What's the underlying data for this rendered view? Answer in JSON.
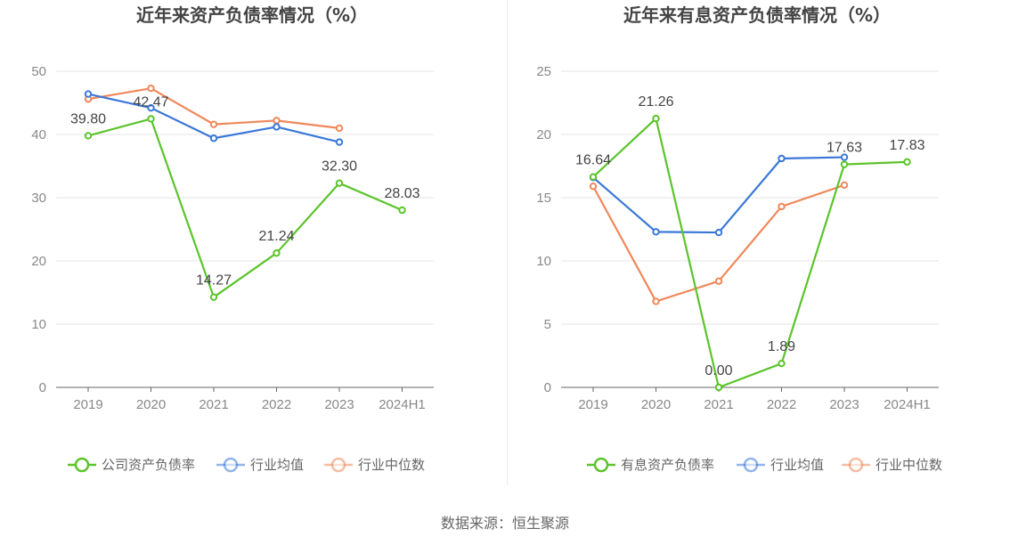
{
  "source_text": "数据来源：恒生聚源",
  "chart_data": [
    {
      "type": "line",
      "title": "近年来资产负债率情况（%）",
      "categories": [
        "2019",
        "2020",
        "2021",
        "2022",
        "2023",
        "2024H1"
      ],
      "ylim": [
        0,
        50
      ],
      "yticks": [
        0,
        10,
        20,
        30,
        40,
        50
      ],
      "grid": true,
      "legend_position": "bottom",
      "series": [
        {
          "name": "公司资产负债率",
          "color": "#5bc42b",
          "values": [
            39.8,
            42.47,
            14.27,
            21.24,
            32.3,
            28.03
          ],
          "labels": [
            "39.80",
            "42.47",
            "14.27",
            "21.24",
            "32.30",
            "28.03"
          ]
        },
        {
          "name": "行业均值",
          "color": "#3a78d8",
          "values": [
            46.4,
            44.2,
            39.4,
            41.2,
            38.8,
            null
          ]
        },
        {
          "name": "行业中位数",
          "color": "#f0885a",
          "values": [
            45.6,
            47.3,
            41.6,
            42.2,
            41.0,
            null
          ]
        }
      ]
    },
    {
      "type": "line",
      "title": "近年来有息资产负债率情况（%）",
      "categories": [
        "2019",
        "2020",
        "2021",
        "2022",
        "2023",
        "2024H1"
      ],
      "ylim": [
        0,
        25
      ],
      "yticks": [
        0,
        5,
        10,
        15,
        20,
        25
      ],
      "grid": true,
      "legend_position": "bottom",
      "series": [
        {
          "name": "有息资产负债率",
          "color": "#5bc42b",
          "values": [
            16.64,
            21.26,
            0.0,
            1.89,
            17.63,
            17.83
          ],
          "labels": [
            "16.64",
            "21.26",
            "0.00",
            "1.89",
            "17.63",
            "17.83"
          ]
        },
        {
          "name": "行业均值",
          "color": "#3a78d8",
          "values": [
            16.6,
            12.3,
            12.25,
            18.1,
            18.2,
            null
          ]
        },
        {
          "name": "行业中位数",
          "color": "#f0885a",
          "values": [
            15.9,
            6.8,
            8.4,
            14.3,
            16.0,
            null
          ]
        }
      ]
    }
  ]
}
